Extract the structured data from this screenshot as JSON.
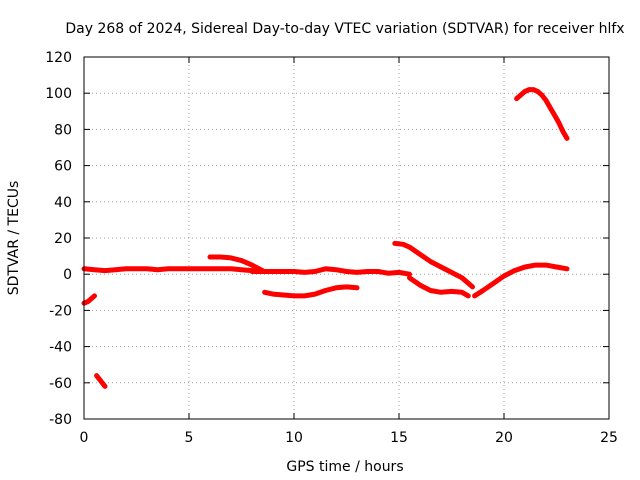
{
  "chart_data": {
    "type": "line",
    "title": "Day 268 of 2024, Sidereal Day-to-day VTEC variation (SDTVAR) for receiver hlfx",
    "xlabel": "GPS time / hours",
    "ylabel": "SDTVAR / TECUs",
    "xlim": [
      0,
      25
    ],
    "ylim": [
      -80,
      120
    ],
    "xticks": [
      0,
      5,
      10,
      15,
      20,
      25
    ],
    "yticks": [
      -80,
      -60,
      -40,
      -20,
      0,
      20,
      40,
      60,
      80,
      100,
      120
    ],
    "grid": true,
    "color": "#ff0000",
    "series": [
      {
        "name": "arc-main-left",
        "x": [
          0.0,
          0.5,
          1.0,
          1.5,
          2.0,
          2.5,
          3.0,
          3.5,
          4.0,
          4.5,
          5.0,
          5.5,
          6.0,
          6.5,
          7.0,
          7.5,
          8.0
        ],
        "y": [
          3,
          2.5,
          2,
          2.5,
          3,
          3,
          3,
          2.5,
          3,
          3,
          3,
          3,
          3,
          3,
          3,
          2.5,
          2
        ]
      },
      {
        "name": "arc-early-dip",
        "x": [
          0.0,
          0.2,
          0.4,
          0.5
        ],
        "y": [
          -16,
          -15,
          -13,
          -12
        ]
      },
      {
        "name": "arc-early-low",
        "x": [
          0.6,
          0.8,
          1.0
        ],
        "y": [
          -56,
          -59,
          -62
        ]
      },
      {
        "name": "arc-morning-hump",
        "x": [
          6.0,
          6.5,
          7.0,
          7.5,
          8.0,
          8.5
        ],
        "y": [
          9.5,
          9.5,
          9,
          7.5,
          5,
          2
        ]
      },
      {
        "name": "arc-midday",
        "x": [
          8.0,
          8.5,
          9.0,
          9.5,
          10.0,
          10.5,
          11.0,
          11.5,
          12.0,
          12.5,
          13.0,
          13.5,
          14.0,
          14.5,
          15.0,
          15.5
        ],
        "y": [
          1.5,
          1.5,
          1.5,
          1.5,
          1.5,
          1,
          1.5,
          3,
          2.5,
          1.5,
          1,
          1.5,
          1.5,
          0.5,
          1,
          0
        ]
      },
      {
        "name": "arc-midday-low",
        "x": [
          8.6,
          9.0,
          9.5,
          10.0,
          10.5,
          11.0,
          11.5,
          12.0,
          12.5,
          13.0
        ],
        "y": [
          -10,
          -11,
          -11.5,
          -12,
          -12,
          -11,
          -9,
          -7.5,
          -7,
          -7.5
        ]
      },
      {
        "name": "arc-afternoon-dip",
        "x": [
          15.5,
          16.0,
          16.5,
          17.0,
          17.5,
          18.0,
          18.3
        ],
        "y": [
          -2,
          -6,
          -9,
          -10,
          -9.5,
          -10,
          -12
        ]
      },
      {
        "name": "arc-afternoon-fall",
        "x": [
          14.8,
          15.2,
          15.5,
          16.0,
          16.5,
          17.0,
          17.5,
          18.0,
          18.5
        ],
        "y": [
          17,
          16.5,
          15,
          11,
          7,
          4,
          1,
          -2,
          -7
        ]
      },
      {
        "name": "arc-evening-rise",
        "x": [
          18.6,
          19.0,
          19.5,
          20.0,
          20.5,
          21.0,
          21.5,
          22.0,
          22.5,
          23.0
        ],
        "y": [
          -12,
          -9,
          -5,
          -1,
          2,
          4,
          5,
          5,
          4,
          3
        ]
      },
      {
        "name": "arc-evening-high",
        "x": [
          20.6,
          20.8,
          21.0,
          21.2,
          21.4,
          21.6,
          21.8,
          22.0,
          22.2,
          22.4,
          22.6,
          22.8,
          23.0
        ],
        "y": [
          97,
          99,
          101,
          102,
          102,
          101,
          99,
          96,
          92,
          88,
          84,
          79,
          75
        ]
      }
    ]
  }
}
